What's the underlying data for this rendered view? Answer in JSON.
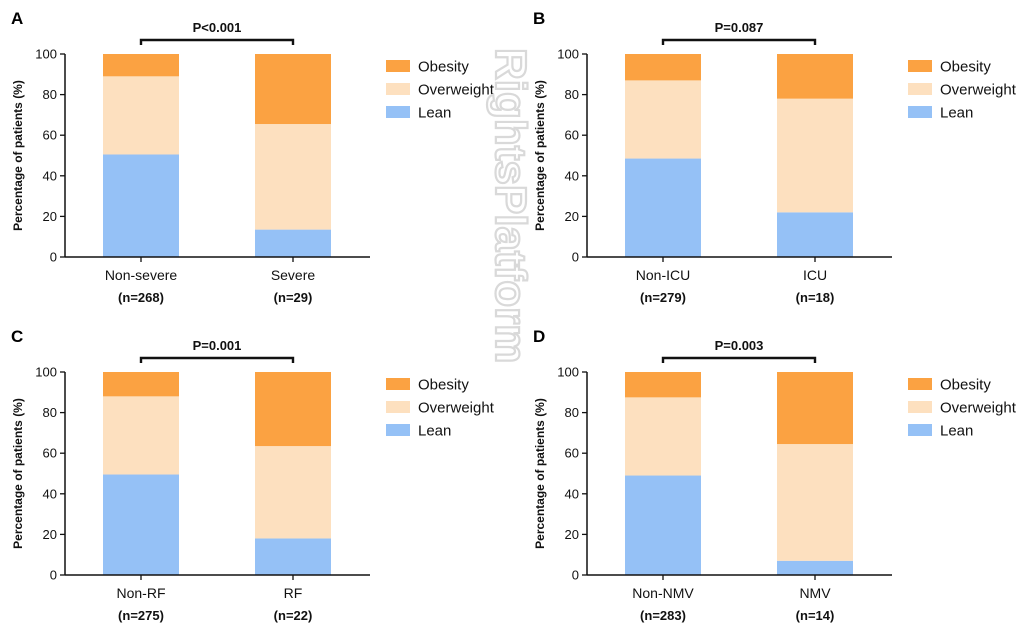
{
  "watermark": {
    "text": "RightsPlatform"
  },
  "legend_labels": [
    "Obesity",
    "Overweight",
    "Lean"
  ],
  "colors": {
    "Obesity": "#fba242",
    "Overweight": "#fde0bf",
    "Lean": "#95c1f6"
  },
  "chart_data": [
    {
      "panel": "A",
      "type": "bar",
      "stacked": true,
      "ylabel": "Percentage of patients (%)",
      "ylim": [
        0,
        100
      ],
      "yticks": [
        0,
        20,
        40,
        60,
        80,
        100
      ],
      "categories": [
        "Non-severe",
        "Severe"
      ],
      "counts": [
        "(n=268)",
        "(n=29)"
      ],
      "p_value": "P<0.001",
      "series": [
        {
          "name": "Lean",
          "values": [
            50.5,
            13.5
          ]
        },
        {
          "name": "Overweight",
          "values": [
            38.5,
            52.0
          ]
        },
        {
          "name": "Obesity",
          "values": [
            11.0,
            34.5
          ]
        }
      ],
      "legend": "right"
    },
    {
      "panel": "B",
      "type": "bar",
      "stacked": true,
      "ylabel": "Percentage of patients (%)",
      "ylim": [
        0,
        100
      ],
      "yticks": [
        0,
        20,
        40,
        60,
        80,
        100
      ],
      "categories": [
        "Non-ICU",
        "ICU"
      ],
      "counts": [
        "(n=279)",
        "(n=18)"
      ],
      "p_value": "P=0.087",
      "series": [
        {
          "name": "Lean",
          "values": [
            48.5,
            22.0
          ]
        },
        {
          "name": "Overweight",
          "values": [
            38.5,
            56.0
          ]
        },
        {
          "name": "Obesity",
          "values": [
            13.0,
            22.0
          ]
        }
      ],
      "legend": "right"
    },
    {
      "panel": "C",
      "type": "bar",
      "stacked": true,
      "ylabel": "Percentage of patients (%)",
      "ylim": [
        0,
        100
      ],
      "yticks": [
        0,
        20,
        40,
        60,
        80,
        100
      ],
      "categories": [
        "Non-RF",
        "RF"
      ],
      "counts": [
        "(n=275)",
        "(n=22)"
      ],
      "p_value": "P=0.001",
      "series": [
        {
          "name": "Lean",
          "values": [
            49.5,
            18.0
          ]
        },
        {
          "name": "Overweight",
          "values": [
            38.5,
            45.5
          ]
        },
        {
          "name": "Obesity",
          "values": [
            12.0,
            36.5
          ]
        }
      ],
      "legend": "right"
    },
    {
      "panel": "D",
      "type": "bar",
      "stacked": true,
      "ylabel": "Percentage of patients (%)",
      "ylim": [
        0,
        100
      ],
      "yticks": [
        0,
        20,
        40,
        60,
        80,
        100
      ],
      "categories": [
        "Non-NMV",
        "NMV"
      ],
      "counts": [
        "(n=283)",
        "(n=14)"
      ],
      "p_value": "P=0.003",
      "series": [
        {
          "name": "Lean",
          "values": [
            49.0,
            7.0
          ]
        },
        {
          "name": "Overweight",
          "values": [
            38.5,
            57.5
          ]
        },
        {
          "name": "Obesity",
          "values": [
            12.5,
            35.5
          ]
        }
      ],
      "legend": "right"
    }
  ]
}
